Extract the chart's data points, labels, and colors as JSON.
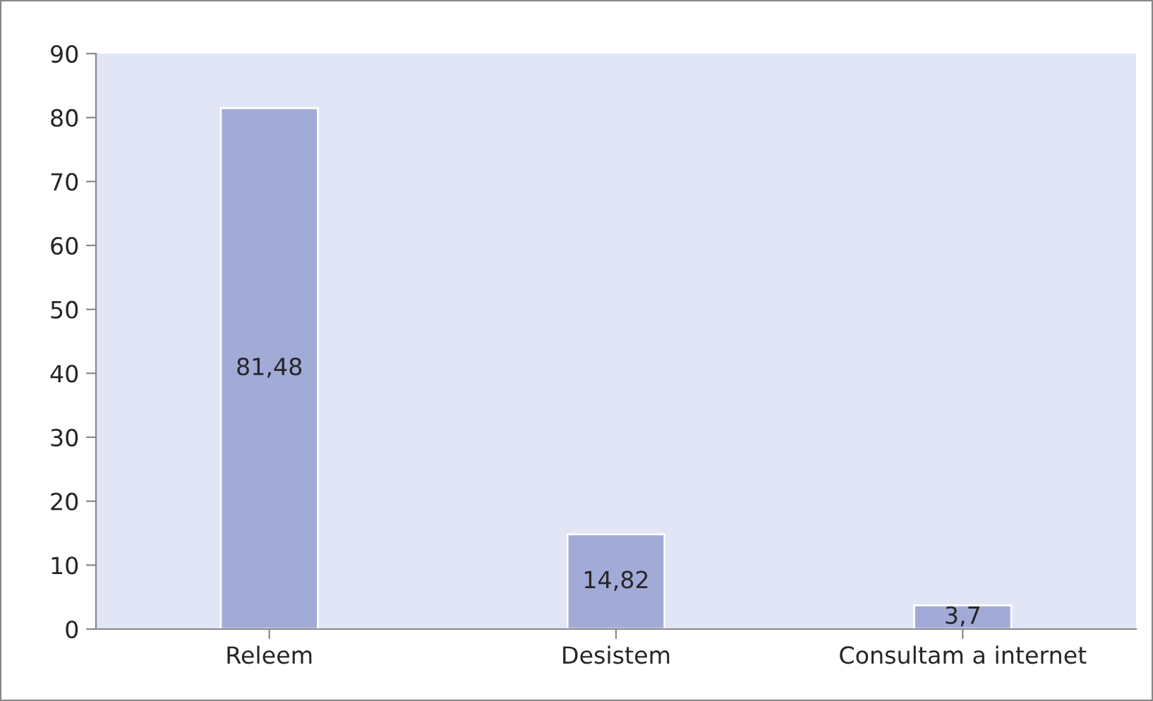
{
  "chart_data": {
    "type": "bar",
    "categories": [
      "Releem",
      "Desistem",
      "Consultam a internet"
    ],
    "values": [
      81.48,
      14.82,
      3.7
    ],
    "value_labels": [
      "81,48",
      "14,82",
      "3,7"
    ],
    "color": "#a2abd8",
    "ylim": [
      0,
      90
    ],
    "yticks": [
      0,
      10,
      20,
      30,
      40,
      50,
      60,
      70,
      80,
      90
    ],
    "grid": false,
    "legend": false
  }
}
